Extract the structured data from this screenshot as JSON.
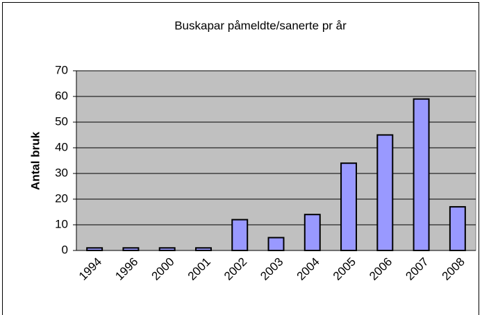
{
  "chart_data": {
    "type": "bar",
    "title": "Buskapar påmeldte/sanerte pr år",
    "y_label": "Antal bruk",
    "categories": [
      "1994",
      "1996",
      "2000",
      "2001",
      "2002",
      "2003",
      "2004",
      "2005",
      "2006",
      "2007",
      "2008"
    ],
    "values": [
      1,
      1,
      1,
      1,
      12,
      5,
      14,
      34,
      45,
      59,
      17
    ],
    "color": "#9999ff",
    "ylim": [
      0,
      70
    ],
    "yticks": [
      0,
      10,
      20,
      30,
      40,
      50,
      60,
      70
    ],
    "grid": true
  }
}
